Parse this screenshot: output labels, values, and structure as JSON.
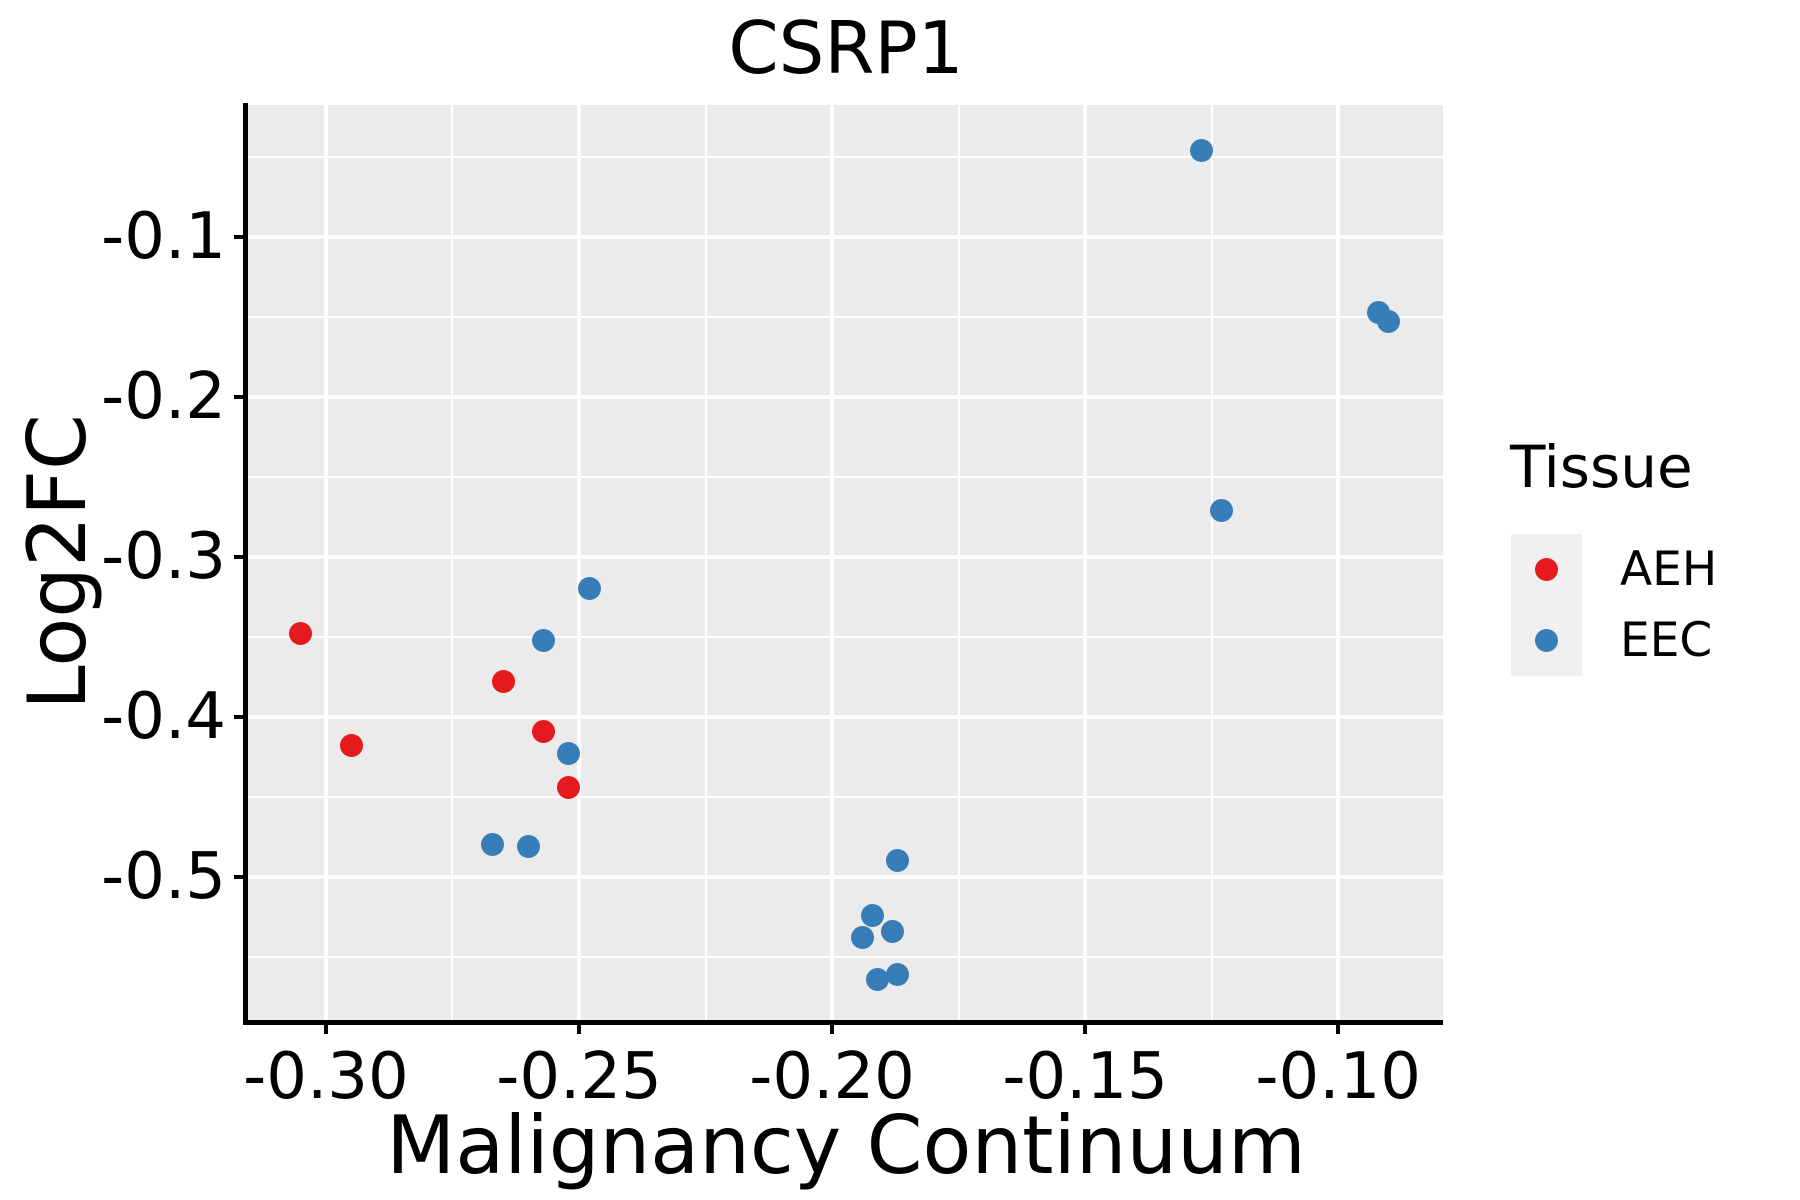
{
  "title": "CSRP1",
  "colors": {
    "aeh": "#E41A1C",
    "eec": "#377EB8",
    "panel_background": "#EBEBEB",
    "gridline": "#FFFFFF",
    "axis": "#000000",
    "legend_key_background": "#F0F0F0",
    "text": "#000000",
    "figure_background": "#FFFFFF"
  },
  "chart_data": {
    "type": "scatter",
    "title": "CSRP1",
    "xlabel": "Malignancy Continuum",
    "ylabel": "Log2FC",
    "legend_title": "Tissue",
    "legend_position": "right",
    "grid": true,
    "xlim": [
      -0.3154,
      -0.0793
    ],
    "ylim": [
      -0.5894,
      -0.0175
    ],
    "x_major_ticks": [
      -0.3,
      -0.25,
      -0.2,
      -0.15,
      -0.1
    ],
    "x_tick_labels": [
      "-0.30",
      "-0.25",
      "-0.20",
      "-0.15",
      "-0.10"
    ],
    "x_minor_ticks": [
      -0.275,
      -0.225,
      -0.175,
      -0.125
    ],
    "y_major_ticks": [
      -0.1,
      -0.2,
      -0.3,
      -0.4,
      -0.5
    ],
    "y_tick_labels": [
      "-0.1",
      "-0.2",
      "-0.3",
      "-0.4",
      "-0.5"
    ],
    "y_minor_ticks": [
      -0.05,
      -0.15,
      -0.25,
      -0.35,
      -0.45,
      -0.55
    ],
    "series": [
      {
        "name": "AEH",
        "color": "#E41A1C",
        "points": [
          [
            -0.305,
            -0.348
          ],
          [
            -0.295,
            -0.418
          ],
          [
            -0.265,
            -0.378
          ],
          [
            -0.257,
            -0.409
          ],
          [
            -0.252,
            -0.444
          ]
        ]
      },
      {
        "name": "EEC",
        "color": "#377EB8",
        "points": [
          [
            -0.127,
            -0.046
          ],
          [
            -0.092,
            -0.147
          ],
          [
            -0.09,
            -0.153
          ],
          [
            -0.123,
            -0.271
          ],
          [
            -0.248,
            -0.32
          ],
          [
            -0.257,
            -0.352
          ],
          [
            -0.252,
            -0.423
          ],
          [
            -0.267,
            -0.48
          ],
          [
            -0.26,
            -0.481
          ],
          [
            -0.187,
            -0.49
          ],
          [
            -0.192,
            -0.524
          ],
          [
            -0.188,
            -0.534
          ],
          [
            -0.194,
            -0.538
          ],
          [
            -0.187,
            -0.561
          ],
          [
            -0.191,
            -0.564
          ]
        ]
      }
    ]
  },
  "legend": {
    "title": "Tissue",
    "entries": [
      {
        "label": "AEH",
        "color": "#E41A1C"
      },
      {
        "label": "EEC",
        "color": "#377EB8"
      }
    ]
  }
}
